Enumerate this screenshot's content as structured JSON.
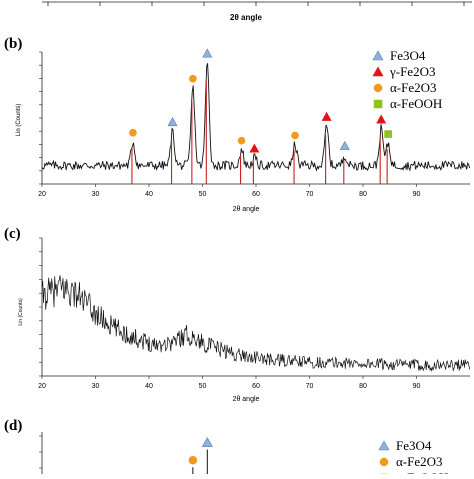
{
  "top_fragment": {
    "xlabel": "2θ angle"
  },
  "colors": {
    "fe3o4": "#8fb1dc",
    "gamma_fe2o3": "#e01616",
    "alpha_fe2o3": "#f39a1a",
    "alpha_feooh": "#8dc21f",
    "pattern_b": "#111111",
    "pattern_b_peaks": "#c62020",
    "pattern_c": "#111111"
  },
  "panel_b": {
    "label": "(b)",
    "ylabel": "Lin (Counts)",
    "legend": [
      {
        "label": "Fe3O4",
        "marker": "triangle",
        "color_key": "fe3o4"
      },
      {
        "label": "γ-Fe2O3",
        "marker": "triangle",
        "color_key": "gamma_fe2o3"
      },
      {
        "label": "α-Fe2O3",
        "marker": "circle",
        "color_key": "alpha_fe2o3"
      },
      {
        "label": "α-FeOOH",
        "marker": "square",
        "color_key": "alpha_feooh"
      }
    ]
  },
  "panel_c": {
    "label": "(c)",
    "ylabel": "Lin (Counts)"
  },
  "panel_d": {
    "label": "(d)",
    "legend": [
      {
        "label": "Fe3O4",
        "marker": "triangle",
        "color_key": "fe3o4"
      },
      {
        "label": "α-Fe2O3",
        "marker": "circle",
        "color_key": "alpha_fe2o3"
      },
      {
        "label": "α-FeOOH",
        "marker": "square",
        "color_key": "alpha_feooh"
      }
    ]
  },
  "chart_data": [
    {
      "type": "line",
      "panel": "b",
      "title": "",
      "xlabel": "2θ angle",
      "ylabel": "Lin (Counts)",
      "xlim": [
        20,
        100
      ],
      "ylim": [
        0,
        100
      ],
      "x_ticks": [
        20,
        30,
        40,
        50,
        60,
        70,
        80,
        90
      ],
      "grid": false,
      "legend_position": "top-right",
      "baseline": 14,
      "peaks": [
        {
          "x": 37.0,
          "height": 32,
          "phase": "alpha_fe2o3"
        },
        {
          "x": 44.4,
          "height": 40,
          "phase": "fe3o4"
        },
        {
          "x": 48.2,
          "height": 73,
          "phase": "alpha_fe2o3"
        },
        {
          "x": 50.9,
          "height": 92,
          "phase": "fe3o4"
        },
        {
          "x": 57.3,
          "height": 26,
          "phase": "alpha_fe2o3"
        },
        {
          "x": 59.7,
          "height": 20,
          "phase": "gamma_fe2o3"
        },
        {
          "x": 67.3,
          "height": 30,
          "phase": "alpha_fe2o3"
        },
        {
          "x": 73.2,
          "height": 44,
          "phase": "gamma_fe2o3"
        },
        {
          "x": 76.6,
          "height": 22,
          "phase": "fe3o4"
        },
        {
          "x": 83.4,
          "height": 42,
          "phase": "gamma_fe2o3"
        },
        {
          "x": 84.7,
          "height": 31,
          "phase": "alpha_feooh"
        }
      ]
    },
    {
      "type": "line",
      "panel": "c",
      "title": "",
      "xlabel": "2θ angle",
      "ylabel": "Lin (Counts)",
      "xlim": [
        20,
        100
      ],
      "ylim": [
        0,
        100
      ],
      "x_ticks": [
        20,
        30,
        40,
        50,
        60,
        70,
        80,
        90
      ],
      "grid": false,
      "trend": [
        {
          "x": 20,
          "y": 58
        },
        {
          "x": 24,
          "y": 64
        },
        {
          "x": 27,
          "y": 58
        },
        {
          "x": 30,
          "y": 45
        },
        {
          "x": 33,
          "y": 36
        },
        {
          "x": 37,
          "y": 28
        },
        {
          "x": 41,
          "y": 23
        },
        {
          "x": 44,
          "y": 24
        },
        {
          "x": 47,
          "y": 30
        },
        {
          "x": 49,
          "y": 26
        },
        {
          "x": 52,
          "y": 21
        },
        {
          "x": 56,
          "y": 16
        },
        {
          "x": 62,
          "y": 12
        },
        {
          "x": 70,
          "y": 10
        },
        {
          "x": 80,
          "y": 9
        },
        {
          "x": 90,
          "y": 8
        },
        {
          "x": 100,
          "y": 8
        }
      ]
    },
    {
      "type": "line",
      "panel": "d",
      "title": "",
      "xlim": [
        20,
        100
      ],
      "ylim": [
        0,
        100
      ],
      "grid": false,
      "legend_position": "top-right",
      "peaks": [
        {
          "x": 48.2,
          "height": 60,
          "phase": "alpha_fe2o3"
        },
        {
          "x": 50.9,
          "height": 80,
          "phase": "fe3o4"
        }
      ]
    }
  ]
}
